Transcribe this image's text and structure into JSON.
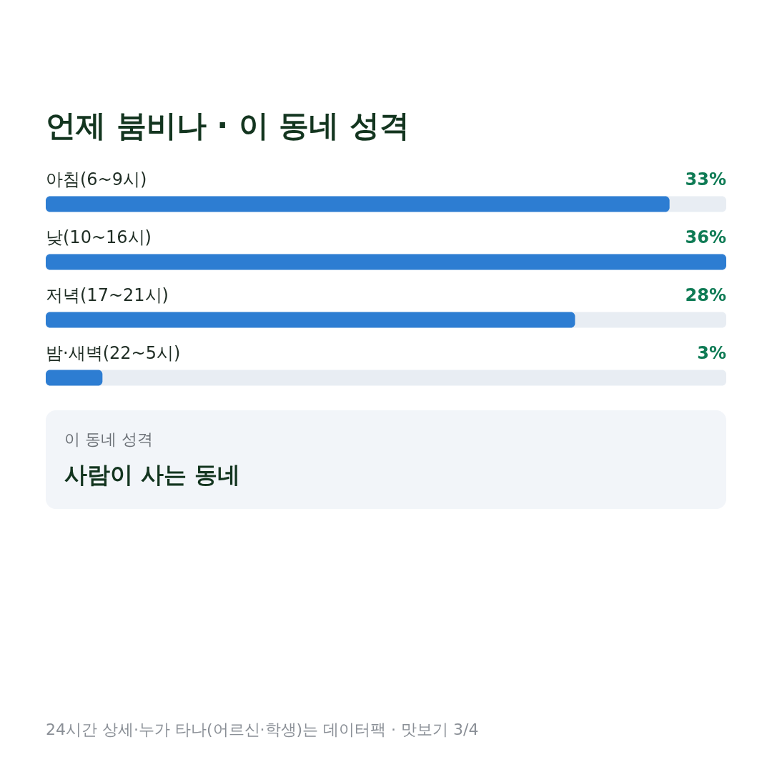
{
  "chart_data": {
    "type": "bar",
    "orientation": "horizontal",
    "title": "언제 붐비나 · 이 동네 성격",
    "categories": [
      "아침(6~9시)",
      "낮(10~16시)",
      "저녁(17~21시)",
      "밤·새벽(22~5시)"
    ],
    "values": [
      33,
      36,
      28,
      3
    ],
    "value_labels": [
      "33%",
      "36%",
      "28%",
      "3%"
    ],
    "color": "#2d7dd2",
    "xlim": [
      0,
      36
    ],
    "tick_labels": "y",
    "annotations": [
      "이 동네 성격",
      "사람이 사는 동네",
      "24시간 상세·누가 타나(어르신·학생)는 데이터팩 · 맛보기 3/4"
    ]
  }
}
